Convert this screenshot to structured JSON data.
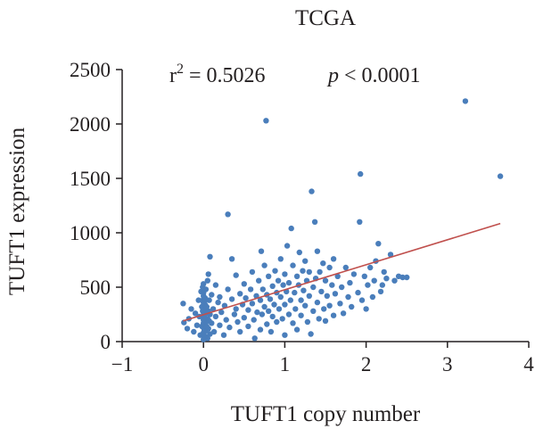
{
  "chart_data": {
    "type": "scatter",
    "title": "TCGA",
    "xlabel": "TUFT1 copy number",
    "ylabel": "TUFT1 expression",
    "xlim": [
      -1,
      4
    ],
    "ylim": [
      0,
      2500
    ],
    "xticks": [
      -1,
      0,
      1,
      2,
      3,
      4
    ],
    "yticks": [
      0,
      500,
      1000,
      1500,
      2000,
      2500
    ],
    "xtick_labels": [
      "−1",
      "0",
      "1",
      "2",
      "3",
      "4"
    ],
    "ytick_labels": [
      "0",
      "500",
      "1000",
      "1500",
      "2000",
      "2500"
    ],
    "grid": false,
    "annotation": {
      "r2_symbol": "r",
      "r2_sup": "2",
      "r2_text": " = 0.5026",
      "p_symbol": "p",
      "p_text": " < 0.0001"
    },
    "point_color": "#4a7ebb",
    "fit_color": "#c0504d",
    "fit_line": {
      "x": [
        -0.25,
        3.65
      ],
      "y": [
        190,
        1085
      ]
    },
    "points": [
      [
        -0.25,
        350
      ],
      [
        -0.24,
        175
      ],
      [
        -0.2,
        120
      ],
      [
        -0.18,
        210
      ],
      [
        -0.15,
        300
      ],
      [
        -0.12,
        90
      ],
      [
        -0.1,
        260
      ],
      [
        -0.08,
        150
      ],
      [
        -0.06,
        380
      ],
      [
        -0.05,
        230
      ],
      [
        -0.04,
        60
      ],
      [
        -0.03,
        460
      ],
      [
        -0.02,
        320
      ],
      [
        -0.02,
        140
      ],
      [
        -0.01,
        500
      ],
      [
        -0.01,
        280
      ],
      [
        0,
        20
      ],
      [
        0,
        80
      ],
      [
        0,
        130
      ],
      [
        0,
        170
      ],
      [
        0,
        200
      ],
      [
        0,
        240
      ],
      [
        0,
        270
      ],
      [
        0,
        300
      ],
      [
        0,
        330
      ],
      [
        0,
        360
      ],
      [
        0,
        390
      ],
      [
        0,
        420
      ],
      [
        0,
        450
      ],
      [
        0,
        530
      ],
      [
        0.01,
        110
      ],
      [
        0.01,
        190
      ],
      [
        0.01,
        250
      ],
      [
        0.01,
        310
      ],
      [
        0.01,
        370
      ],
      [
        0.02,
        50
      ],
      [
        0.02,
        160
      ],
      [
        0.02,
        220
      ],
      [
        0.02,
        290
      ],
      [
        0.02,
        340
      ],
      [
        0.02,
        400
      ],
      [
        0.03,
        100
      ],
      [
        0.03,
        180
      ],
      [
        0.03,
        260
      ],
      [
        0.03,
        480
      ],
      [
        0.04,
        140
      ],
      [
        0.04,
        320
      ],
      [
        0.05,
        30
      ],
      [
        0.05,
        210
      ],
      [
        0.05,
        560
      ],
      [
        0.06,
        120
      ],
      [
        0.06,
        280
      ],
      [
        0.06,
        620
      ],
      [
        0.07,
        190
      ],
      [
        0.07,
        380
      ],
      [
        0.08,
        70
      ],
      [
        0.08,
        250
      ],
      [
        0.08,
        780
      ],
      [
        0.1,
        170
      ],
      [
        0.1,
        430
      ],
      [
        0.12,
        300
      ],
      [
        0.13,
        90
      ],
      [
        0.15,
        230
      ],
      [
        0.15,
        520
      ],
      [
        0.18,
        360
      ],
      [
        0.2,
        150
      ],
      [
        0.2,
        410
      ],
      [
        0.22,
        270
      ],
      [
        0.25,
        60
      ],
      [
        0.26,
        330
      ],
      [
        0.28,
        200
      ],
      [
        0.3,
        1170
      ],
      [
        0.3,
        480
      ],
      [
        0.32,
        130
      ],
      [
        0.35,
        390
      ],
      [
        0.35,
        760
      ],
      [
        0.38,
        250
      ],
      [
        0.4,
        300
      ],
      [
        0.4,
        610
      ],
      [
        0.42,
        180
      ],
      [
        0.45,
        440
      ],
      [
        0.45,
        90
      ],
      [
        0.48,
        340
      ],
      [
        0.5,
        220
      ],
      [
        0.5,
        530
      ],
      [
        0.52,
        400
      ],
      [
        0.55,
        140
      ],
      [
        0.55,
        290
      ],
      [
        0.58,
        480
      ],
      [
        0.6,
        350
      ],
      [
        0.6,
        640
      ],
      [
        0.62,
        200
      ],
      [
        0.63,
        30
      ],
      [
        0.65,
        420
      ],
      [
        0.66,
        270
      ],
      [
        0.68,
        560
      ],
      [
        0.7,
        110
      ],
      [
        0.7,
        380
      ],
      [
        0.71,
        830
      ],
      [
        0.72,
        250
      ],
      [
        0.73,
        480
      ],
      [
        0.75,
        320
      ],
      [
        0.75,
        700
      ],
      [
        0.77,
        2030
      ],
      [
        0.78,
        160
      ],
      [
        0.78,
        430
      ],
      [
        0.8,
        600
      ],
      [
        0.8,
        280
      ],
      [
        0.82,
        390
      ],
      [
        0.83,
        90
      ],
      [
        0.85,
        510
      ],
      [
        0.85,
        230
      ],
      [
        0.87,
        340
      ],
      [
        0.88,
        650
      ],
      [
        0.9,
        450
      ],
      [
        0.9,
        180
      ],
      [
        0.92,
        560
      ],
      [
        0.93,
        300
      ],
      [
        0.95,
        410
      ],
      [
        0.95,
        760
      ],
      [
        0.97,
        210
      ],
      [
        0.98,
        520
      ],
      [
        1,
        340
      ],
      [
        1,
        620
      ],
      [
        1,
        60
      ],
      [
        1.02,
        460
      ],
      [
        1.03,
        880
      ],
      [
        1.05,
        250
      ],
      [
        1.05,
        540
      ],
      [
        1.07,
        380
      ],
      [
        1.08,
        1040
      ],
      [
        1.1,
        170
      ],
      [
        1.1,
        700
      ],
      [
        1.12,
        450
      ],
      [
        1.13,
        300
      ],
      [
        1.15,
        600
      ],
      [
        1.15,
        110
      ],
      [
        1.17,
        520
      ],
      [
        1.18,
        820
      ],
      [
        1.2,
        380
      ],
      [
        1.2,
        240
      ],
      [
        1.22,
        650
      ],
      [
        1.23,
        470
      ],
      [
        1.25,
        330
      ],
      [
        1.25,
        740
      ],
      [
        1.27,
        560
      ],
      [
        1.28,
        180
      ],
      [
        1.3,
        420
      ],
      [
        1.3,
        640
      ],
      [
        1.32,
        70
      ],
      [
        1.33,
        1380
      ],
      [
        1.35,
        500
      ],
      [
        1.35,
        280
      ],
      [
        1.37,
        1100
      ],
      [
        1.38,
        580
      ],
      [
        1.4,
        360
      ],
      [
        1.4,
        830
      ],
      [
        1.42,
        210
      ],
      [
        1.43,
        640
      ],
      [
        1.45,
        460
      ],
      [
        1.47,
        720
      ],
      [
        1.48,
        300
      ],
      [
        1.5,
        560
      ],
      [
        1.5,
        190
      ],
      [
        1.52,
        420
      ],
      [
        1.55,
        680
      ],
      [
        1.55,
        330
      ],
      [
        1.58,
        520
      ],
      [
        1.6,
        240
      ],
      [
        1.6,
        760
      ],
      [
        1.62,
        440
      ],
      [
        1.65,
        600
      ],
      [
        1.68,
        350
      ],
      [
        1.7,
        500
      ],
      [
        1.72,
        260
      ],
      [
        1.75,
        680
      ],
      [
        1.78,
        410
      ],
      [
        1.8,
        540
      ],
      [
        1.82,
        320
      ],
      [
        1.85,
        620
      ],
      [
        1.9,
        450
      ],
      [
        1.92,
        1100
      ],
      [
        1.93,
        1540
      ],
      [
        1.95,
        380
      ],
      [
        1.98,
        600
      ],
      [
        2,
        300
      ],
      [
        2.02,
        520
      ],
      [
        2.05,
        680
      ],
      [
        2.08,
        410
      ],
      [
        2.1,
        560
      ],
      [
        2.12,
        740
      ],
      [
        2.15,
        900
      ],
      [
        2.18,
        460
      ],
      [
        2.2,
        520
      ],
      [
        2.22,
        640
      ],
      [
        2.25,
        580
      ],
      [
        2.3,
        800
      ],
      [
        2.35,
        560
      ],
      [
        2.4,
        600
      ],
      [
        2.45,
        590
      ],
      [
        2.5,
        590
      ],
      [
        3.22,
        2210
      ],
      [
        3.65,
        1520
      ]
    ]
  }
}
